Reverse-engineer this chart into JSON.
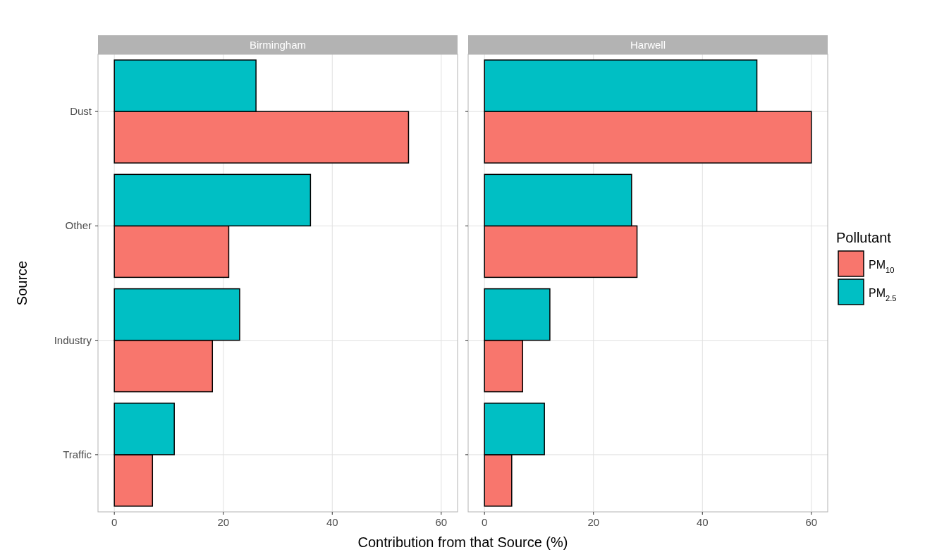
{
  "chart_data": [
    {
      "type": "bar",
      "orientation": "horizontal",
      "title": "Birmingham",
      "xlabel": "Contribution from that Source (%)",
      "ylabel": "Source",
      "categories": [
        "Dust",
        "Other",
        "Industry",
        "Traffic"
      ],
      "xlim": [
        -3,
        63
      ],
      "xticks": [
        0,
        20,
        40,
        60
      ],
      "grid": true,
      "legend": "right",
      "legend_title": "Pollutant",
      "series": [
        {
          "name": "PM$_{10}$",
          "color": "#f8766d",
          "values": [
            54,
            21,
            18,
            7
          ]
        },
        {
          "name": "PM$_{2.5}$",
          "color": "#00bfc4",
          "values": [
            26,
            36,
            23,
            11
          ]
        }
      ]
    },
    {
      "type": "bar",
      "orientation": "horizontal",
      "title": "Harwell",
      "categories": [
        null,
        null,
        null,
        null
      ],
      "xlim": [
        -3,
        63
      ],
      "xticks": [
        0,
        20,
        40,
        60
      ],
      "grid": true,
      "series": [
        {
          "color": "#f8766d",
          "values": [
            60,
            28,
            7,
            5
          ]
        },
        {
          "color": "#00bfc4",
          "values": [
            50,
            27,
            12,
            11
          ]
        }
      ]
    }
  ]
}
